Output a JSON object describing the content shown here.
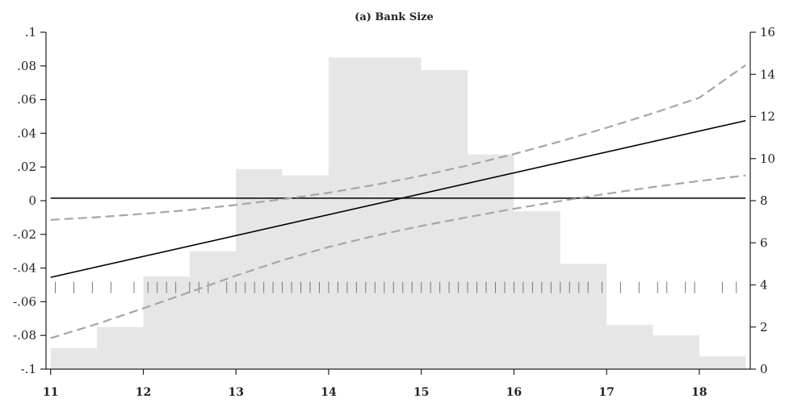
{
  "chart_data": {
    "type": "line",
    "title": "(a) Bank Size",
    "xlabel": "",
    "ylabel": "",
    "xlim": [
      10.95,
      18.55
    ],
    "ylim": [
      -0.1,
      0.1
    ],
    "y2lim": [
      0,
      16
    ],
    "grid": false,
    "x_ticks": [
      "11",
      "12",
      "13",
      "14",
      "15",
      "16",
      "17",
      "18"
    ],
    "x_tick_values": [
      11,
      12,
      13,
      14,
      15,
      16,
      17,
      18
    ],
    "y_ticks": [
      "-.1",
      "-.08",
      "-.06",
      "-.04",
      "-.02",
      "0",
      ".02",
      ".04",
      ".06",
      ".08",
      ".1"
    ],
    "y_tick_values": [
      -0.1,
      -0.08,
      -0.06,
      -0.04,
      -0.02,
      0,
      0.02,
      0.04,
      0.06,
      0.08,
      0.1
    ],
    "y2_ticks": [
      "0",
      "2",
      "4",
      "6",
      "8",
      "10",
      "12",
      "14",
      "16"
    ],
    "y2_tick_values": [
      0,
      2,
      4,
      6,
      8,
      10,
      12,
      14,
      16
    ],
    "histogram": {
      "axis": "right",
      "bins": [
        {
          "x0": 11.0,
          "x1": 11.5,
          "value": 1.0
        },
        {
          "x0": 11.5,
          "x1": 12.0,
          "value": 2.0
        },
        {
          "x0": 12.0,
          "x1": 12.5,
          "value": 4.4
        },
        {
          "x0": 12.5,
          "x1": 13.0,
          "value": 5.6
        },
        {
          "x0": 13.0,
          "x1": 13.5,
          "value": 9.5
        },
        {
          "x0": 13.5,
          "x1": 14.0,
          "value": 9.2
        },
        {
          "x0": 14.0,
          "x1": 14.5,
          "value": 14.8
        },
        {
          "x0": 14.5,
          "x1": 15.0,
          "value": 14.8
        },
        {
          "x0": 15.0,
          "x1": 15.5,
          "value": 14.2
        },
        {
          "x0": 15.5,
          "x1": 16.0,
          "value": 10.2
        },
        {
          "x0": 16.0,
          "x1": 16.5,
          "value": 7.5
        },
        {
          "x0": 16.5,
          "x1": 17.0,
          "value": 5.0
        },
        {
          "x0": 17.0,
          "x1": 17.5,
          "value": 2.1
        },
        {
          "x0": 17.5,
          "x1": 18.0,
          "value": 1.6
        },
        {
          "x0": 18.0,
          "x1": 18.5,
          "value": 0.6
        }
      ],
      "color": "#e6e6e6"
    },
    "series": [
      {
        "x": [
          11.0,
          18.5
        ],
        "y": [
          -0.0455,
          0.0475
        ],
        "style": "solid",
        "color": "#000000"
      },
      {
        "x": [
          11.0,
          18.5
        ],
        "y": [
          0.0015,
          0.0015
        ],
        "style": "solid",
        "color": "#000000"
      },
      {
        "x": [
          11.0,
          11.5,
          12.0,
          12.5,
          13.0,
          13.5,
          14.0,
          14.5,
          15.0,
          15.5,
          16.0,
          16.5,
          17.0,
          17.5,
          18.0,
          18.5
        ],
        "y": [
          -0.0114,
          -0.0098,
          -0.0078,
          -0.0055,
          -0.0025,
          0.0008,
          0.0047,
          0.0094,
          0.0148,
          0.0209,
          0.0277,
          0.0352,
          0.0433,
          0.0519,
          0.0611,
          0.0805
        ],
        "style": "dashed",
        "color": "#a6a6a6"
      },
      {
        "x": [
          11.0,
          11.5,
          12.0,
          12.5,
          13.0,
          13.5,
          14.0,
          14.5,
          15.0,
          15.5,
          16.0,
          16.5,
          17.0,
          17.5,
          18.0,
          18.5
        ],
        "y": [
          -0.0816,
          -0.0732,
          -0.0639,
          -0.0543,
          -0.0445,
          -0.0354,
          -0.0275,
          -0.0208,
          -0.015,
          -0.0098,
          -0.0048,
          -0.0002,
          0.0041,
          0.0081,
          0.0117,
          0.015
        ],
        "style": "dashed",
        "color": "#a6a6a6"
      }
    ],
    "rug": {
      "y": -0.0515,
      "color": "#777777",
      "x": [
        11.05,
        11.25,
        11.45,
        11.65,
        11.9,
        12.05,
        12.15,
        12.25,
        12.35,
        12.5,
        12.6,
        12.7,
        12.9,
        13.0,
        13.1,
        13.2,
        13.3,
        13.4,
        13.5,
        13.6,
        13.7,
        13.8,
        13.9,
        14.0,
        14.1,
        14.2,
        14.3,
        14.4,
        14.5,
        14.6,
        14.7,
        14.8,
        14.9,
        15.0,
        15.1,
        15.2,
        15.3,
        15.4,
        15.5,
        15.6,
        15.7,
        15.8,
        15.9,
        16.0,
        16.1,
        16.2,
        16.3,
        16.4,
        16.5,
        16.6,
        16.7,
        16.8,
        16.95,
        17.15,
        17.35,
        17.55,
        17.65,
        17.85,
        17.95,
        18.25,
        18.4
      ]
    }
  }
}
